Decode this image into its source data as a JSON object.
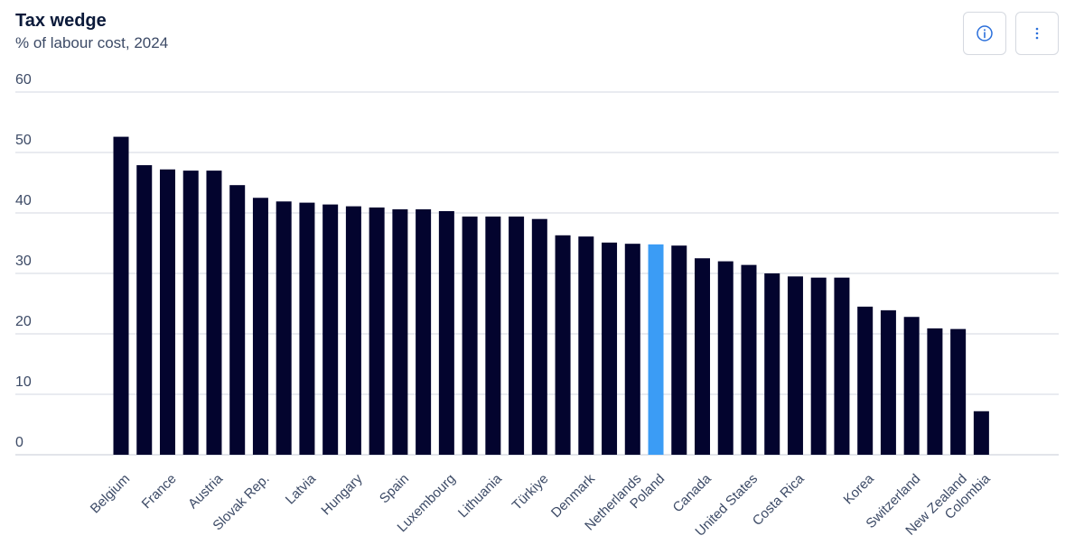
{
  "header": {
    "title": "Tax wedge",
    "subtitle": "% of labour cost, 2024",
    "info_icon": "info-icon",
    "more_icon": "more-vertical-icon"
  },
  "colors": {
    "bar": "#03042e",
    "highlight": "#3b9cf5",
    "grid": "#d3d7e2",
    "baseline": "#c5c9d4"
  },
  "chart_data": {
    "type": "bar",
    "title": "Tax wedge",
    "subtitle": "% of labour cost, 2024",
    "ylim": [
      0,
      60
    ],
    "yticks": [
      0,
      10,
      20,
      30,
      40,
      50,
      60
    ],
    "grid": true,
    "highlight": "Poland",
    "labeled_categories": [
      "Belgium",
      "France",
      "Austria",
      "Slovak Rep.",
      "Latvia",
      "Hungary",
      "Spain",
      "Luxembourg",
      "Lithuania",
      "Türkiye",
      "Denmark",
      "Netherlands",
      "Poland",
      "Canada",
      "United States",
      "Costa Rica",
      "Korea",
      "Switzerland",
      "New Zealand",
      "Colombia"
    ],
    "bars": [
      {
        "label": "Belgium",
        "value": 52.6
      },
      {
        "label": "",
        "value": 47.9
      },
      {
        "label": "France",
        "value": 47.2
      },
      {
        "label": "",
        "value": 47.0
      },
      {
        "label": "Austria",
        "value": 47.0
      },
      {
        "label": "",
        "value": 44.6
      },
      {
        "label": "Slovak Rep.",
        "value": 42.5
      },
      {
        "label": "",
        "value": 41.9
      },
      {
        "label": "Latvia",
        "value": 41.7
      },
      {
        "label": "",
        "value": 41.4
      },
      {
        "label": "Hungary",
        "value": 41.1
      },
      {
        "label": "",
        "value": 40.9
      },
      {
        "label": "Spain",
        "value": 40.6
      },
      {
        "label": "",
        "value": 40.6
      },
      {
        "label": "Luxembourg",
        "value": 40.3
      },
      {
        "label": "",
        "value": 39.4
      },
      {
        "label": "Lithuania",
        "value": 39.4
      },
      {
        "label": "",
        "value": 39.4
      },
      {
        "label": "Türkiye",
        "value": 39.0
      },
      {
        "label": "",
        "value": 36.3
      },
      {
        "label": "Denmark",
        "value": 36.1
      },
      {
        "label": "",
        "value": 35.1
      },
      {
        "label": "Netherlands",
        "value": 34.9
      },
      {
        "label": "Poland",
        "value": 34.8
      },
      {
        "label": "",
        "value": 34.6
      },
      {
        "label": "Canada",
        "value": 32.5
      },
      {
        "label": "",
        "value": 32.0
      },
      {
        "label": "United States",
        "value": 31.4
      },
      {
        "label": "",
        "value": 30.0
      },
      {
        "label": "Costa Rica",
        "value": 29.5
      },
      {
        "label": "",
        "value": 29.3
      },
      {
        "label": "",
        "value": 29.3
      },
      {
        "label": "Korea",
        "value": 24.5
      },
      {
        "label": "",
        "value": 23.9
      },
      {
        "label": "Switzerland",
        "value": 22.8
      },
      {
        "label": "",
        "value": 20.9
      },
      {
        "label": "New Zealand",
        "value": 20.8
      },
      {
        "label": "Colombia",
        "value": 7.2
      }
    ]
  }
}
